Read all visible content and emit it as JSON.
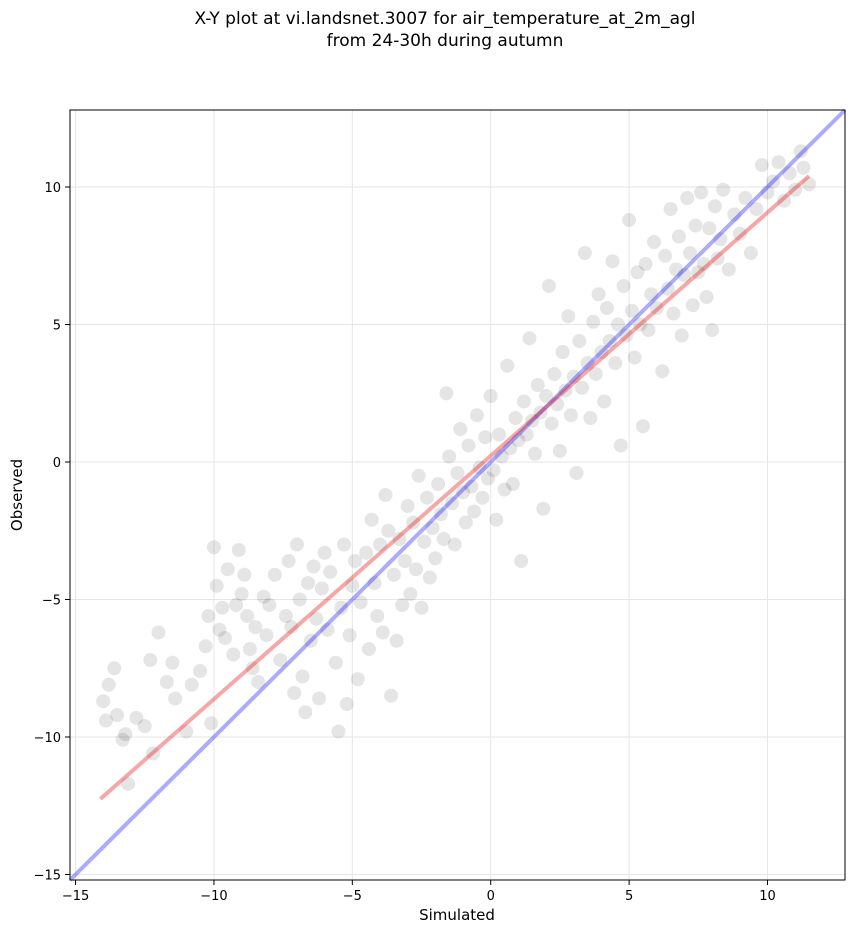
{
  "title_lines": [
    "X-Y plot at vi.landsnet.3007 for air_temperature_at_2m_agl",
    "from 24-30h during autumn"
  ],
  "chart_data": {
    "type": "scatter",
    "xlabel": "Simulated",
    "ylabel": "Observed",
    "xlim": [
      -15.2,
      12.8
    ],
    "ylim": [
      -15.2,
      12.8
    ],
    "xticks": [
      -15,
      -10,
      -5,
      0,
      5,
      10
    ],
    "yticks": [
      -15,
      -10,
      -5,
      0,
      5,
      10
    ],
    "tick_labels": [
      "−15",
      "−10",
      "−5",
      "0",
      "5",
      "10"
    ],
    "grid": true,
    "point_color": "#000000",
    "point_opacity": 0.1,
    "identity_line": {
      "x": [
        -15.2,
        12.8
      ],
      "y": [
        -15.2,
        12.8
      ],
      "color": "#0000ff"
    },
    "fit_line": {
      "x": [
        -14.1,
        11.5
      ],
      "y": [
        -12.25,
        10.4
      ],
      "color": "#e8191d"
    },
    "points": [
      [
        -14.0,
        -8.7
      ],
      [
        -13.8,
        -8.1
      ],
      [
        -13.6,
        -7.5
      ],
      [
        -13.5,
        -9.2
      ],
      [
        -13.9,
        -9.4
      ],
      [
        -13.3,
        -10.1
      ],
      [
        -13.2,
        -9.9
      ],
      [
        -13.1,
        -11.7
      ],
      [
        -12.8,
        -9.3
      ],
      [
        -12.5,
        -9.6
      ],
      [
        -12.2,
        -10.6
      ],
      [
        -12.3,
        -7.2
      ],
      [
        -12.0,
        -6.2
      ],
      [
        -11.7,
        -8.0
      ],
      [
        -11.5,
        -7.3
      ],
      [
        -11.4,
        -8.6
      ],
      [
        -11.0,
        -9.8
      ],
      [
        -10.8,
        -8.1
      ],
      [
        -10.5,
        -7.6
      ],
      [
        -10.3,
        -6.7
      ],
      [
        -10.2,
        -5.6
      ],
      [
        -10.1,
        -9.5
      ],
      [
        -10.0,
        -3.1
      ],
      [
        -9.9,
        -4.5
      ],
      [
        -9.8,
        -6.1
      ],
      [
        -9.7,
        -5.3
      ],
      [
        -9.6,
        -6.4
      ],
      [
        -9.5,
        -3.9
      ],
      [
        -9.3,
        -7.0
      ],
      [
        -9.2,
        -5.2
      ],
      [
        -9.1,
        -3.2
      ],
      [
        -9.0,
        -4.8
      ],
      [
        -8.9,
        -4.1
      ],
      [
        -8.8,
        -5.6
      ],
      [
        -8.7,
        -6.8
      ],
      [
        -8.6,
        -7.5
      ],
      [
        -8.5,
        -6.0
      ],
      [
        -8.4,
        -8.0
      ],
      [
        -8.2,
        -4.9
      ],
      [
        -8.1,
        -6.3
      ],
      [
        -8.0,
        -5.2
      ],
      [
        -7.8,
        -4.1
      ],
      [
        -7.6,
        -7.2
      ],
      [
        -7.4,
        -5.6
      ],
      [
        -7.3,
        -3.6
      ],
      [
        -7.2,
        -6.0
      ],
      [
        -7.1,
        -8.4
      ],
      [
        -7.0,
        -3.0
      ],
      [
        -6.9,
        -5.0
      ],
      [
        -6.8,
        -7.8
      ],
      [
        -6.7,
        -9.1
      ],
      [
        -6.6,
        -4.4
      ],
      [
        -6.5,
        -6.5
      ],
      [
        -6.4,
        -3.8
      ],
      [
        -6.3,
        -5.7
      ],
      [
        -6.2,
        -8.6
      ],
      [
        -6.1,
        -4.6
      ],
      [
        -6.0,
        -3.3
      ],
      [
        -5.9,
        -6.1
      ],
      [
        -5.8,
        -4.0
      ],
      [
        -5.6,
        -7.3
      ],
      [
        -5.5,
        -9.8
      ],
      [
        -5.4,
        -5.3
      ],
      [
        -5.3,
        -3.0
      ],
      [
        -5.2,
        -8.8
      ],
      [
        -5.1,
        -6.3
      ],
      [
        -5.0,
        -4.5
      ],
      [
        -4.9,
        -3.6
      ],
      [
        -4.8,
        -7.9
      ],
      [
        -4.7,
        -5.1
      ],
      [
        -4.5,
        -3.3
      ],
      [
        -4.4,
        -6.8
      ],
      [
        -4.3,
        -2.1
      ],
      [
        -4.2,
        -4.4
      ],
      [
        -4.1,
        -5.6
      ],
      [
        -4.0,
        -3.0
      ],
      [
        -3.9,
        -6.2
      ],
      [
        -3.8,
        -1.2
      ],
      [
        -3.7,
        -2.5
      ],
      [
        -3.6,
        -8.5
      ],
      [
        -3.5,
        -4.1
      ],
      [
        -3.4,
        -6.5
      ],
      [
        -3.3,
        -2.8
      ],
      [
        -3.2,
        -5.2
      ],
      [
        -3.1,
        -3.6
      ],
      [
        -3.0,
        -1.6
      ],
      [
        -2.9,
        -4.8
      ],
      [
        -2.8,
        -2.2
      ],
      [
        -2.7,
        -3.9
      ],
      [
        -2.6,
        -0.5
      ],
      [
        -2.5,
        -5.3
      ],
      [
        -2.4,
        -2.9
      ],
      [
        -2.3,
        -1.3
      ],
      [
        -2.2,
        -4.2
      ],
      [
        -2.1,
        -2.4
      ],
      [
        -2.0,
        -3.5
      ],
      [
        -1.9,
        -0.8
      ],
      [
        -1.8,
        -1.9
      ],
      [
        -1.7,
        -2.8
      ],
      [
        -1.6,
        2.5
      ],
      [
        -1.5,
        0.2
      ],
      [
        -1.4,
        -1.5
      ],
      [
        -1.3,
        -3.0
      ],
      [
        -1.2,
        -0.4
      ],
      [
        -1.1,
        1.2
      ],
      [
        -1.0,
        -1.1
      ],
      [
        -0.9,
        -2.2
      ],
      [
        -0.8,
        0.6
      ],
      [
        -0.7,
        -0.9
      ],
      [
        -0.6,
        -1.8
      ],
      [
        -0.5,
        1.7
      ],
      [
        -0.4,
        -0.2
      ],
      [
        -0.3,
        -1.3
      ],
      [
        -0.2,
        0.9
      ],
      [
        -0.1,
        -0.6
      ],
      [
        0.0,
        2.4
      ],
      [
        0.1,
        -0.3
      ],
      [
        0.2,
        -2.1
      ],
      [
        0.3,
        1.0
      ],
      [
        0.4,
        0.2
      ],
      [
        0.5,
        -1.0
      ],
      [
        0.6,
        3.5
      ],
      [
        0.7,
        0.5
      ],
      [
        0.8,
        -0.8
      ],
      [
        0.9,
        1.6
      ],
      [
        1.0,
        0.8
      ],
      [
        1.1,
        -3.6
      ],
      [
        1.2,
        2.2
      ],
      [
        1.3,
        1.0
      ],
      [
        1.4,
        4.5
      ],
      [
        1.5,
        1.5
      ],
      [
        1.6,
        0.3
      ],
      [
        1.7,
        2.8
      ],
      [
        1.8,
        1.8
      ],
      [
        1.9,
        -1.7
      ],
      [
        2.0,
        2.4
      ],
      [
        2.1,
        6.4
      ],
      [
        2.2,
        1.4
      ],
      [
        2.3,
        3.2
      ],
      [
        2.4,
        2.1
      ],
      [
        2.5,
        0.4
      ],
      [
        2.6,
        4.0
      ],
      [
        2.7,
        2.6
      ],
      [
        2.8,
        5.3
      ],
      [
        2.9,
        1.7
      ],
      [
        3.0,
        3.1
      ],
      [
        3.1,
        -0.4
      ],
      [
        3.2,
        4.4
      ],
      [
        3.3,
        2.7
      ],
      [
        3.4,
        7.6
      ],
      [
        3.5,
        3.6
      ],
      [
        3.6,
        1.6
      ],
      [
        3.7,
        5.1
      ],
      [
        3.8,
        3.2
      ],
      [
        3.9,
        6.1
      ],
      [
        4.0,
        4.0
      ],
      [
        4.1,
        2.2
      ],
      [
        4.2,
        5.6
      ],
      [
        4.3,
        4.4
      ],
      [
        4.4,
        7.3
      ],
      [
        4.5,
        3.6
      ],
      [
        4.6,
        5.0
      ],
      [
        4.7,
        0.6
      ],
      [
        4.8,
        6.4
      ],
      [
        4.9,
        4.6
      ],
      [
        5.0,
        8.8
      ],
      [
        5.1,
        5.5
      ],
      [
        5.2,
        3.8
      ],
      [
        5.3,
        6.9
      ],
      [
        5.4,
        5.0
      ],
      [
        5.5,
        1.3
      ],
      [
        5.6,
        7.2
      ],
      [
        5.7,
        4.8
      ],
      [
        5.8,
        6.1
      ],
      [
        5.9,
        8.0
      ],
      [
        6.0,
        5.6
      ],
      [
        6.2,
        3.3
      ],
      [
        6.3,
        7.5
      ],
      [
        6.4,
        6.3
      ],
      [
        6.5,
        9.2
      ],
      [
        6.6,
        5.4
      ],
      [
        6.7,
        7.0
      ],
      [
        6.8,
        8.2
      ],
      [
        6.9,
        4.6
      ],
      [
        7.0,
        6.8
      ],
      [
        7.1,
        9.6
      ],
      [
        7.2,
        7.6
      ],
      [
        7.3,
        5.7
      ],
      [
        7.4,
        8.6
      ],
      [
        7.5,
        6.9
      ],
      [
        7.6,
        9.8
      ],
      [
        7.7,
        7.2
      ],
      [
        7.8,
        6.0
      ],
      [
        7.9,
        8.5
      ],
      [
        8.0,
        4.8
      ],
      [
        8.1,
        9.3
      ],
      [
        8.2,
        7.4
      ],
      [
        8.3,
        8.1
      ],
      [
        8.4,
        9.9
      ],
      [
        8.6,
        7.0
      ],
      [
        8.8,
        9.0
      ],
      [
        9.0,
        8.3
      ],
      [
        9.2,
        9.6
      ],
      [
        9.4,
        7.6
      ],
      [
        9.6,
        9.2
      ],
      [
        9.8,
        10.8
      ],
      [
        10.0,
        9.8
      ],
      [
        10.2,
        10.2
      ],
      [
        10.4,
        10.9
      ],
      [
        10.6,
        9.5
      ],
      [
        10.8,
        10.5
      ],
      [
        11.0,
        9.9
      ],
      [
        11.2,
        11.3
      ],
      [
        11.3,
        10.7
      ],
      [
        11.5,
        10.1
      ]
    ]
  }
}
